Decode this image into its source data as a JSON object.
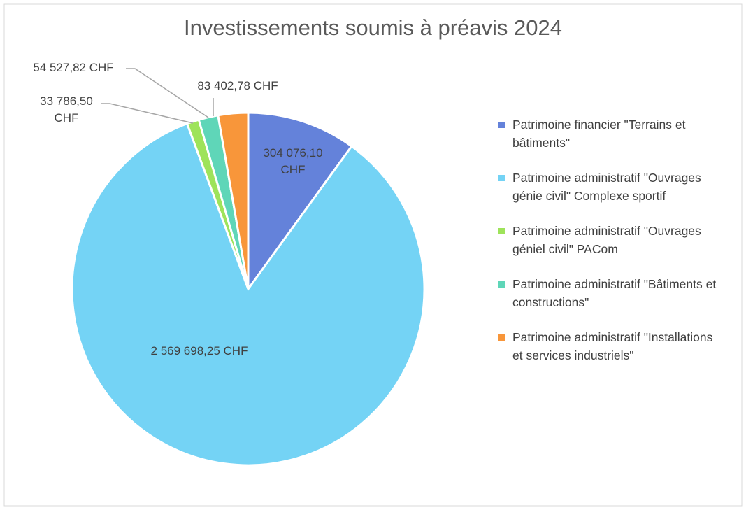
{
  "chart_data": {
    "type": "pie",
    "title": "Investissements soumis à préavis 2024",
    "categories": [
      "Patrimoine financier \"Terrains et bâtiments\"",
      "Patrimoine administratif \"Ouvrages génie civil\" Complexe sportif",
      "Patrimoine administratif \"Ouvrages géniel civil\" PACom",
      "Patrimoine administratif \"Bâtiments et constructions\"",
      "Patrimoine administratif \"Installations et services industriels\""
    ],
    "values": [
      304076.1,
      2569698.25,
      33786.5,
      54527.82,
      83402.78
    ],
    "value_labels": [
      "304 076,10 CHF",
      "2 569 698,25 CHF",
      "33 786,50 CHF",
      "54 527,82 CHF",
      "83 402,78 CHF"
    ],
    "colors": [
      "#6482da",
      "#74d3f5",
      "#9ee35a",
      "#5fd6b8",
      "#f8963a"
    ],
    "legend": "right"
  }
}
